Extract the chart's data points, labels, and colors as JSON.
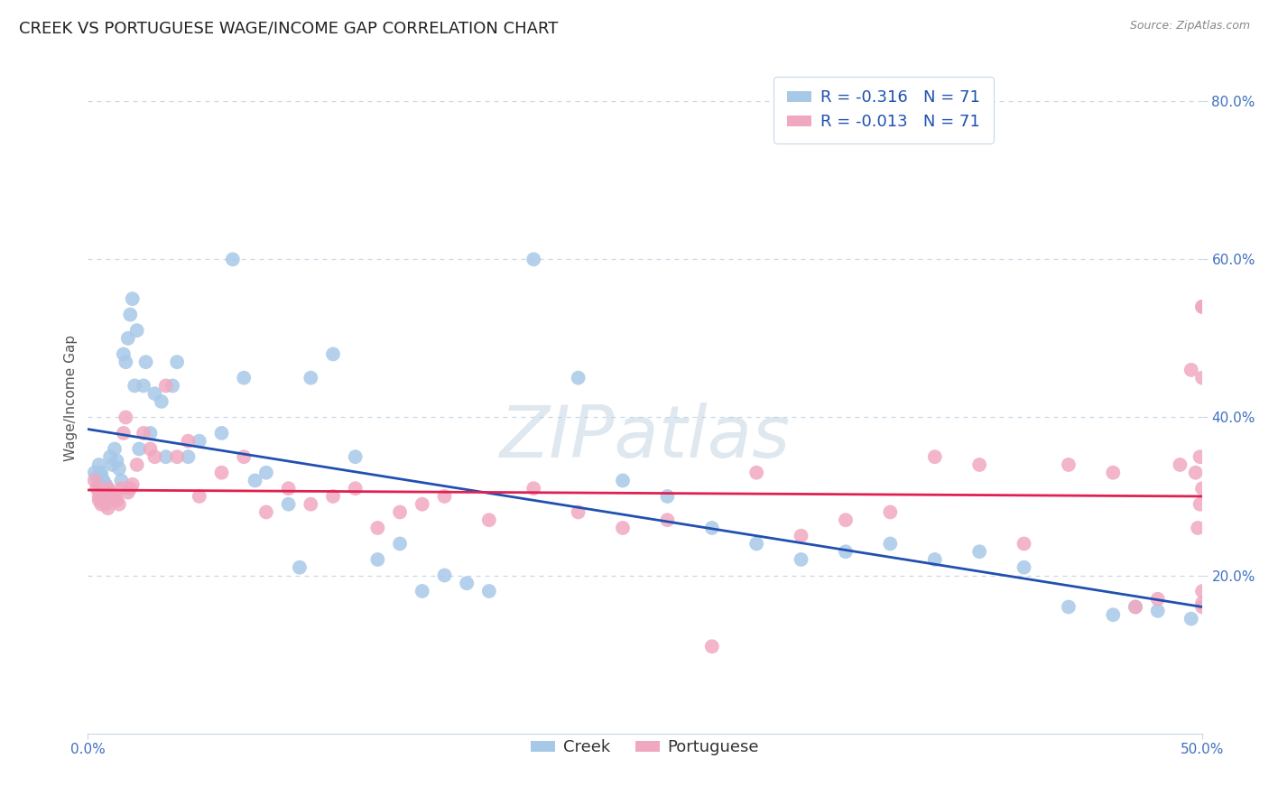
{
  "title": "CREEK VS PORTUGUESE WAGE/INCOME GAP CORRELATION CHART",
  "source": "Source: ZipAtlas.com",
  "ylabel": "Wage/Income Gap",
  "xlim": [
    0.0,
    0.5
  ],
  "ylim": [
    0.0,
    0.85
  ],
  "xtick_positions": [
    0.0,
    0.5
  ],
  "xtick_labels": [
    "0.0%",
    "50.0%"
  ],
  "ytick_values": [
    0.2,
    0.4,
    0.6,
    0.8
  ],
  "ytick_labels": [
    "20.0%",
    "40.0%",
    "60.0%",
    "80.0%"
  ],
  "creek_R": -0.316,
  "creek_N": 71,
  "portuguese_R": -0.013,
  "portuguese_N": 71,
  "creek_color": "#a8c8e8",
  "portuguese_color": "#f0a8c0",
  "creek_line_color": "#2050b0",
  "portuguese_line_color": "#e02050",
  "background_color": "#ffffff",
  "grid_color": "#c8d8e8",
  "tick_color": "#4070c0",
  "ylabel_color": "#555555",
  "title_color": "#222222",
  "source_color": "#888888",
  "legend_text_color": "#2050b0",
  "creek_legend_label": "R = -0.316   N = 71",
  "portuguese_legend_label": "R = -0.013   N = 71",
  "creek_bottom_label": "Creek",
  "portuguese_bottom_label": "Portuguese",
  "watermark": "ZIPatlas",
  "creek_x": [
    0.003,
    0.004,
    0.005,
    0.005,
    0.005,
    0.006,
    0.006,
    0.007,
    0.007,
    0.008,
    0.008,
    0.009,
    0.009,
    0.01,
    0.01,
    0.011,
    0.012,
    0.013,
    0.014,
    0.015,
    0.016,
    0.017,
    0.018,
    0.019,
    0.02,
    0.021,
    0.022,
    0.023,
    0.025,
    0.026,
    0.028,
    0.03,
    0.033,
    0.035,
    0.038,
    0.04,
    0.045,
    0.05,
    0.06,
    0.065,
    0.07,
    0.075,
    0.08,
    0.09,
    0.095,
    0.1,
    0.11,
    0.12,
    0.13,
    0.14,
    0.15,
    0.16,
    0.17,
    0.18,
    0.2,
    0.22,
    0.24,
    0.26,
    0.28,
    0.3,
    0.32,
    0.34,
    0.36,
    0.38,
    0.4,
    0.42,
    0.44,
    0.46,
    0.47,
    0.48,
    0.495
  ],
  "creek_y": [
    0.33,
    0.325,
    0.315,
    0.32,
    0.34,
    0.33,
    0.325,
    0.32,
    0.318,
    0.315,
    0.312,
    0.31,
    0.308,
    0.305,
    0.35,
    0.34,
    0.36,
    0.345,
    0.335,
    0.32,
    0.48,
    0.47,
    0.5,
    0.53,
    0.55,
    0.44,
    0.51,
    0.36,
    0.44,
    0.47,
    0.38,
    0.43,
    0.42,
    0.35,
    0.44,
    0.47,
    0.35,
    0.37,
    0.38,
    0.6,
    0.45,
    0.32,
    0.33,
    0.29,
    0.21,
    0.45,
    0.48,
    0.35,
    0.22,
    0.24,
    0.18,
    0.2,
    0.19,
    0.18,
    0.6,
    0.45,
    0.32,
    0.3,
    0.26,
    0.24,
    0.22,
    0.23,
    0.24,
    0.22,
    0.23,
    0.21,
    0.16,
    0.15,
    0.16,
    0.155,
    0.145
  ],
  "portuguese_x": [
    0.003,
    0.004,
    0.005,
    0.005,
    0.006,
    0.006,
    0.007,
    0.007,
    0.008,
    0.009,
    0.009,
    0.01,
    0.011,
    0.012,
    0.013,
    0.014,
    0.015,
    0.016,
    0.017,
    0.018,
    0.019,
    0.02,
    0.022,
    0.025,
    0.028,
    0.03,
    0.035,
    0.04,
    0.045,
    0.05,
    0.06,
    0.07,
    0.08,
    0.09,
    0.1,
    0.11,
    0.12,
    0.13,
    0.14,
    0.15,
    0.16,
    0.18,
    0.2,
    0.22,
    0.24,
    0.26,
    0.28,
    0.3,
    0.32,
    0.34,
    0.36,
    0.38,
    0.4,
    0.42,
    0.44,
    0.46,
    0.47,
    0.48,
    0.49,
    0.495,
    0.497,
    0.498,
    0.499,
    0.499,
    0.5,
    0.5,
    0.5,
    0.5,
    0.5,
    0.5,
    0.5
  ],
  "portuguese_y": [
    0.32,
    0.31,
    0.3,
    0.295,
    0.305,
    0.29,
    0.298,
    0.295,
    0.29,
    0.285,
    0.31,
    0.305,
    0.298,
    0.302,
    0.295,
    0.29,
    0.31,
    0.38,
    0.4,
    0.305,
    0.31,
    0.315,
    0.34,
    0.38,
    0.36,
    0.35,
    0.44,
    0.35,
    0.37,
    0.3,
    0.33,
    0.35,
    0.28,
    0.31,
    0.29,
    0.3,
    0.31,
    0.26,
    0.28,
    0.29,
    0.3,
    0.27,
    0.31,
    0.28,
    0.26,
    0.27,
    0.11,
    0.33,
    0.25,
    0.27,
    0.28,
    0.35,
    0.34,
    0.24,
    0.34,
    0.33,
    0.16,
    0.17,
    0.34,
    0.46,
    0.33,
    0.26,
    0.35,
    0.29,
    0.31,
    0.45,
    0.54,
    0.165,
    0.18,
    0.54,
    0.16
  ],
  "title_fontsize": 13,
  "axis_label_fontsize": 11,
  "tick_fontsize": 11,
  "legend_fontsize": 13
}
